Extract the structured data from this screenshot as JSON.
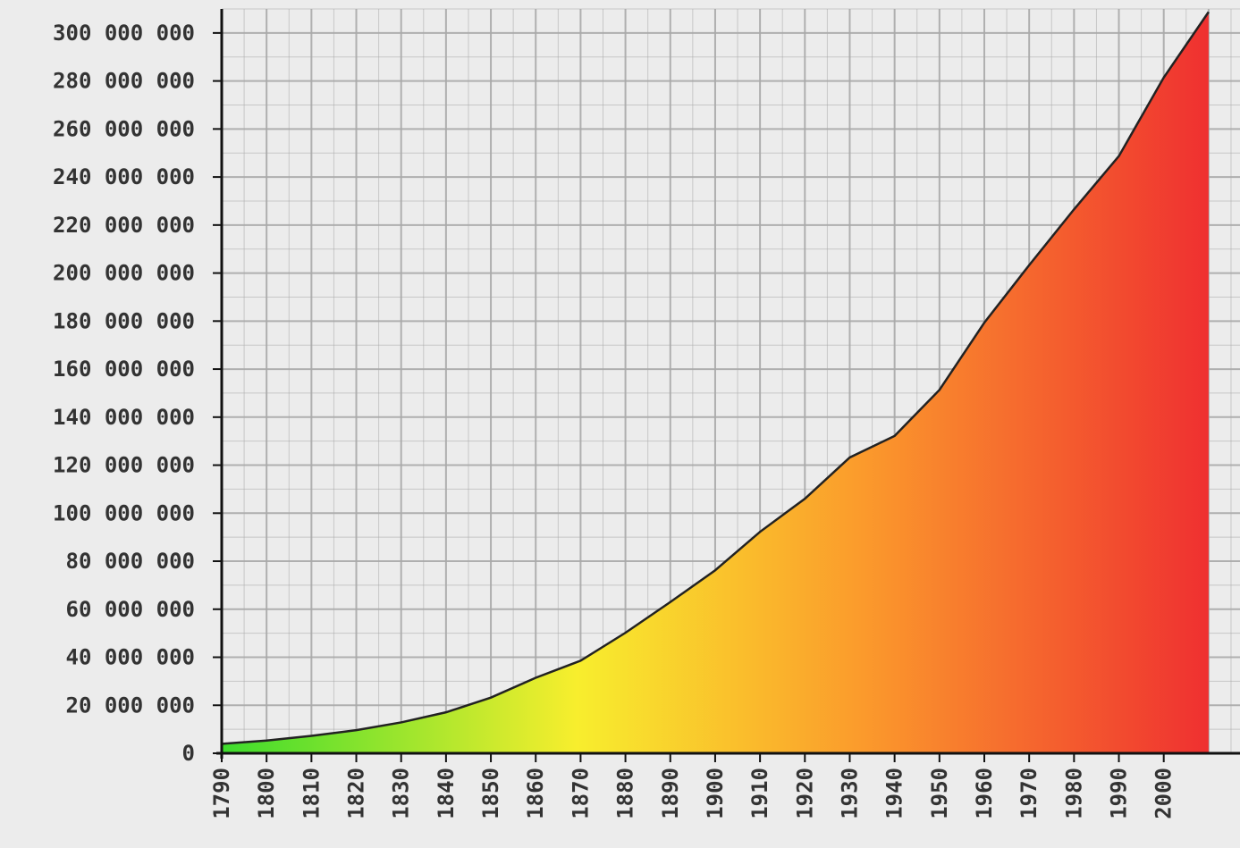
{
  "chart_data": {
    "type": "area",
    "title": "",
    "xlabel": "",
    "ylabel": "",
    "x": [
      1790,
      1800,
      1810,
      1820,
      1830,
      1840,
      1850,
      1860,
      1870,
      1880,
      1890,
      1900,
      1910,
      1920,
      1930,
      1940,
      1950,
      1960,
      1970,
      1980,
      1990,
      2000,
      2010
    ],
    "values": [
      3929214,
      5308483,
      7239881,
      9638453,
      12866020,
      17069453,
      23191876,
      31443321,
      38558371,
      50189209,
      62979766,
      76212168,
      92228496,
      106021537,
      123202624,
      132164569,
      151325798,
      179323175,
      203302031,
      226542199,
      248709873,
      281421906,
      308745538
    ],
    "xlim": [
      1790,
      2017
    ],
    "ylim": [
      0,
      310000000
    ],
    "x_tick_labels": [
      "1790",
      "1800",
      "1810",
      "1820",
      "1830",
      "1840",
      "1850",
      "1860",
      "1870",
      "1880",
      "1890",
      "1900",
      "1910",
      "1920",
      "1930",
      "1940",
      "1950",
      "1960",
      "1970",
      "1980",
      "1990",
      "2000"
    ],
    "y_ticks": [
      0,
      20000000,
      40000000,
      60000000,
      80000000,
      100000000,
      120000000,
      140000000,
      160000000,
      180000000,
      200000000,
      220000000,
      240000000,
      260000000,
      280000000,
      300000000
    ],
    "y_tick_labels": [
      "0",
      "20 000 000",
      "40 000 000",
      "60 000 000",
      "80 000 000",
      "100 000 000",
      "120 000 000",
      "140 000 000",
      "160 000 000",
      "180 000 000",
      "200 000 000",
      "220 000 000",
      "240 000 000",
      "260 000 000",
      "280 000 000",
      "300 000 000"
    ],
    "grid": true,
    "legend": "none",
    "colors": {
      "background": "#ececec",
      "grid": "#a9a9a9",
      "axis": "#111111",
      "line": "#222222",
      "fill_gradient": [
        "#3ddc2d",
        "#f8ee2d",
        "#fb9a2c",
        "#ef3030"
      ]
    }
  }
}
